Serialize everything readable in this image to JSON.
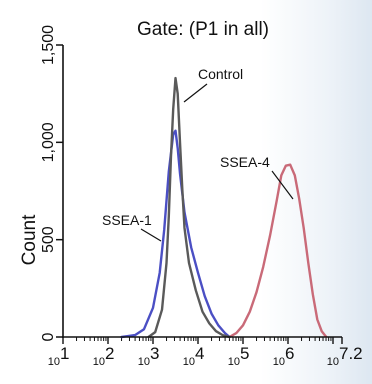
{
  "chart_data": {
    "type": "line",
    "title": "Gate: (P1 in all)",
    "ylabel": "Count",
    "xlabel": "",
    "x_scale": "log",
    "xlim": [
      10,
      15848931.92
    ],
    "ylim": [
      0,
      1500
    ],
    "yticks": [
      {
        "value": 0,
        "label": "0"
      },
      {
        "value": 500,
        "label": "500"
      },
      {
        "value": 1000,
        "label": "1,000"
      },
      {
        "value": 1500,
        "label": "1,500"
      }
    ],
    "xticks": [
      {
        "value": 10,
        "base": "10",
        "exp": "1"
      },
      {
        "value": 100,
        "base": "10",
        "exp": "2"
      },
      {
        "value": 1000,
        "base": "10",
        "exp": "3"
      },
      {
        "value": 10000,
        "base": "10",
        "exp": "4"
      },
      {
        "value": 100000,
        "base": "10",
        "exp": "5"
      },
      {
        "value": 1000000,
        "base": "10",
        "exp": "6"
      },
      {
        "value": 15848931.92,
        "base": "10",
        "exp": "7.2"
      }
    ],
    "series": [
      {
        "name": "Control",
        "color": "#5a5a5a",
        "x": [
          794,
          1122,
          1585,
          1995,
          2239,
          2512,
          2818,
          3162,
          3548,
          3981,
          4467,
          5012,
          6310,
          8913,
          12589,
          17783,
          25119,
          35481,
          50119
        ],
        "y": [
          0,
          25,
          140,
          380,
          620,
          930,
          1170,
          1330,
          1250,
          1000,
          760,
          560,
          380,
          240,
          130,
          70,
          30,
          10,
          0
        ]
      },
      {
        "name": "SSEA-1",
        "color": "#4b4fc4",
        "x": [
          200,
          398,
          631,
          1000,
          1412,
          1778,
          2239,
          2818,
          3162,
          3548,
          3981,
          5012,
          7079,
          10000,
          14125,
          19953,
          28184,
          39811,
          50119
        ],
        "y": [
          0,
          10,
          40,
          150,
          330,
          550,
          850,
          1040,
          1060,
          970,
          840,
          640,
          460,
          330,
          210,
          120,
          60,
          20,
          0
        ]
      },
      {
        "name": "SSEA-4",
        "color": "#c96a78",
        "x": [
          50119,
          70795,
          100000,
          141254,
          199526,
          281838,
          398107,
          562341,
          707946,
          891251,
          1122018,
          1412538,
          1778279,
          2238721,
          2818383,
          3548134,
          4466836,
          5623413,
          7079458
        ],
        "y": [
          0,
          20,
          60,
          130,
          230,
          360,
          520,
          700,
          830,
          880,
          885,
          830,
          710,
          560,
          380,
          220,
          90,
          30,
          0
        ]
      }
    ],
    "annotations": [
      {
        "text": "Control",
        "series": "Control"
      },
      {
        "text": "SSEA-4",
        "series": "SSEA-4"
      },
      {
        "text": "SSEA-1",
        "series": "SSEA-1"
      }
    ],
    "grid": false,
    "legend": "none"
  }
}
